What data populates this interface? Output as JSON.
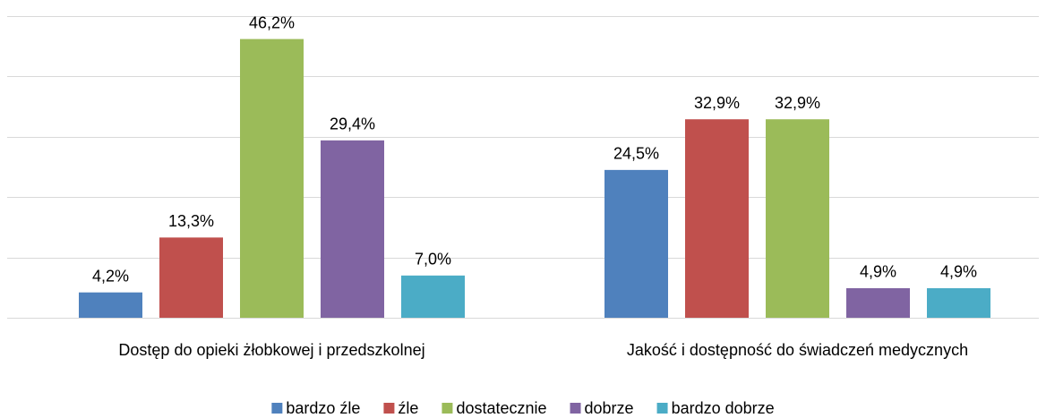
{
  "chart_data": {
    "type": "bar",
    "categories": [
      "Dostęp do opieki żłobkowej i przedszkolnej",
      "Jakość i dostępność do świadczeń medycznych"
    ],
    "series": [
      {
        "name": "bardzo źle",
        "color": "#4f81bd",
        "values": [
          4.2,
          24.5
        ],
        "value_labels": [
          "4,2%",
          "24,5%"
        ]
      },
      {
        "name": "źle",
        "color": "#c0504d",
        "values": [
          13.3,
          32.9
        ],
        "value_labels": [
          "13,3%",
          "32,9%"
        ]
      },
      {
        "name": "dostatecznie",
        "color": "#9bbb59",
        "values": [
          46.2,
          32.9
        ],
        "value_labels": [
          "46,2%",
          "32,9%"
        ]
      },
      {
        "name": "dobrze",
        "color": "#8064a2",
        "values": [
          29.4,
          4.9
        ],
        "value_labels": [
          "29,4%",
          "4,9%"
        ]
      },
      {
        "name": "bardzo dobrze",
        "color": "#4bacc6",
        "values": [
          7.0,
          4.9
        ],
        "value_labels": [
          "7,0%",
          "4,9%"
        ]
      }
    ],
    "ylim": [
      0,
      50
    ],
    "yticks": [
      0,
      10,
      20,
      30,
      40,
      50
    ],
    "grid": true,
    "legend": "bottom"
  }
}
